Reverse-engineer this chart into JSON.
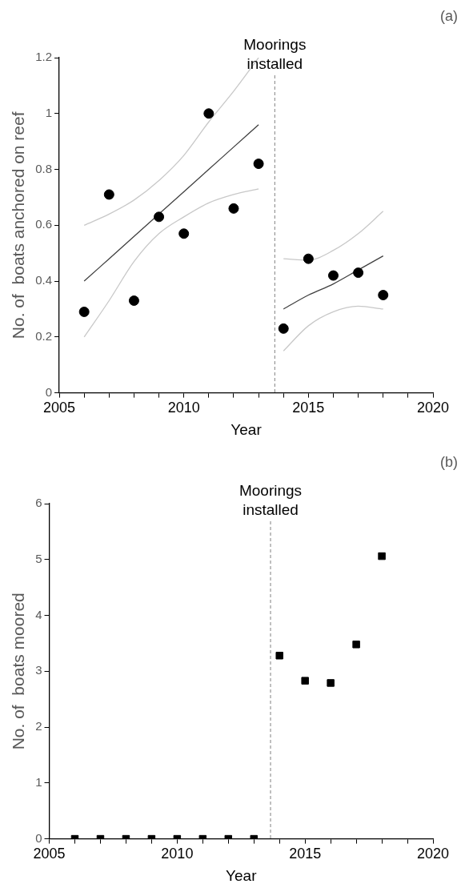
{
  "chart_data": [
    {
      "type": "scatter",
      "xlabel": "Year",
      "ylabel": "No. of  boats anchored on reef",
      "annotations": [
        "(a)"
      ],
      "legend": false,
      "xlim": [
        2005,
        2020
      ],
      "xticks": [
        2005,
        {
          "value": 2006,
          "label": null
        },
        {
          "value": 2007,
          "label": null
        },
        {
          "value": 2008,
          "label": null
        },
        {
          "value": 2009,
          "label": null
        },
        2010,
        {
          "value": 2011,
          "label": null
        },
        {
          "value": 2012,
          "label": null
        },
        {
          "value": 2013,
          "label": null
        },
        {
          "value": 2014,
          "label": null
        },
        2015,
        {
          "value": 2016,
          "label": null
        },
        {
          "value": 2017,
          "label": null
        },
        {
          "value": 2018,
          "label": null
        },
        {
          "value": 2019,
          "label": null
        },
        2020
      ],
      "ylim": [
        0,
        1.2
      ],
      "yticks": [
        0,
        0.2,
        0.4,
        0.6,
        0.8,
        1,
        1.2
      ],
      "ref_lines": [
        {
          "axis": "x",
          "value": 2013.65,
          "label": "Moorings installed",
          "line_style": "dashed",
          "color": "#808080"
        }
      ],
      "series": [
        {
          "marker": "circle",
          "color": "#000000",
          "x": [
            2006,
            2007,
            2008,
            2009,
            2010,
            2011,
            2012,
            2013,
            2014,
            2015,
            2016,
            2017,
            2018
          ],
          "values": [
            0.29,
            0.71,
            0.33,
            0.63,
            0.57,
            1.0,
            0.66,
            0.82,
            0.23,
            0.48,
            0.42,
            0.43,
            0.35
          ]
        },
        {
          "type": "line",
          "marker": "none",
          "color": "#404040",
          "x": [
            2006,
            2007,
            2008,
            2009,
            2010,
            2011,
            2012,
            2013
          ],
          "values": [
            0.4,
            0.48,
            0.56,
            0.64,
            0.72,
            0.8,
            0.88,
            0.96
          ]
        },
        {
          "type": "line",
          "marker": "none",
          "color": "#c8c8c8",
          "x": [
            2006,
            2007,
            2008,
            2009,
            2010,
            2011,
            2012,
            2013
          ],
          "values": [
            0.2,
            0.33,
            0.47,
            0.57,
            0.63,
            0.68,
            0.71,
            0.73
          ]
        },
        {
          "type": "line",
          "marker": "none",
          "color": "#c8c8c8",
          "x": [
            2006,
            2007,
            2008,
            2009,
            2010,
            2011,
            2012,
            2013
          ],
          "values": [
            0.6,
            0.64,
            0.69,
            0.76,
            0.85,
            0.97,
            1.08,
            1.2
          ]
        },
        {
          "type": "line",
          "marker": "none",
          "color": "#404040",
          "x": [
            2014,
            2015,
            2016,
            2017,
            2018
          ],
          "values": [
            0.3,
            0.35,
            0.39,
            0.44,
            0.49
          ]
        },
        {
          "type": "line",
          "marker": "none",
          "color": "#c8c8c8",
          "x": [
            2014,
            2015,
            2016,
            2017,
            2018
          ],
          "values": [
            0.15,
            0.24,
            0.29,
            0.31,
            0.3
          ]
        },
        {
          "type": "line",
          "marker": "none",
          "color": "#c8c8c8",
          "x": [
            2014,
            2015,
            2016,
            2017,
            2018
          ],
          "values": [
            0.48,
            0.475,
            0.51,
            0.57,
            0.65
          ]
        }
      ]
    },
    {
      "type": "scatter",
      "xlabel": "Year",
      "ylabel": "No. of  boats moored",
      "annotations": [
        "(b)"
      ],
      "legend": false,
      "xlim": [
        2005,
        2020
      ],
      "xticks": [
        2005,
        {
          "value": 2006,
          "label": null
        },
        {
          "value": 2007,
          "label": null
        },
        {
          "value": 2008,
          "label": null
        },
        {
          "value": 2009,
          "label": null
        },
        2010,
        {
          "value": 2011,
          "label": null
        },
        {
          "value": 2012,
          "label": null
        },
        {
          "value": 2013,
          "label": null
        },
        {
          "value": 2014,
          "label": null
        },
        2015,
        {
          "value": 2016,
          "label": null
        },
        {
          "value": 2017,
          "label": null
        },
        {
          "value": 2018,
          "label": null
        },
        {
          "value": 2019,
          "label": null
        },
        2020
      ],
      "ylim": [
        0,
        6
      ],
      "yticks": [
        0,
        1,
        2,
        3,
        4,
        5,
        6
      ],
      "ref_lines": [
        {
          "axis": "x",
          "value": 2013.65,
          "label": "Moorings installed",
          "line_style": "dashed",
          "color": "#808080"
        }
      ],
      "series": [
        {
          "marker": "square",
          "color": "#000000",
          "x": [
            2006,
            2007,
            2008,
            2009,
            2010,
            2011,
            2012,
            2013,
            2014,
            2015,
            2016,
            2017,
            2018
          ],
          "values": [
            0,
            0,
            0,
            0,
            0,
            0,
            0,
            0,
            3.28,
            2.83,
            2.79,
            3.48,
            5.06
          ]
        }
      ]
    }
  ]
}
